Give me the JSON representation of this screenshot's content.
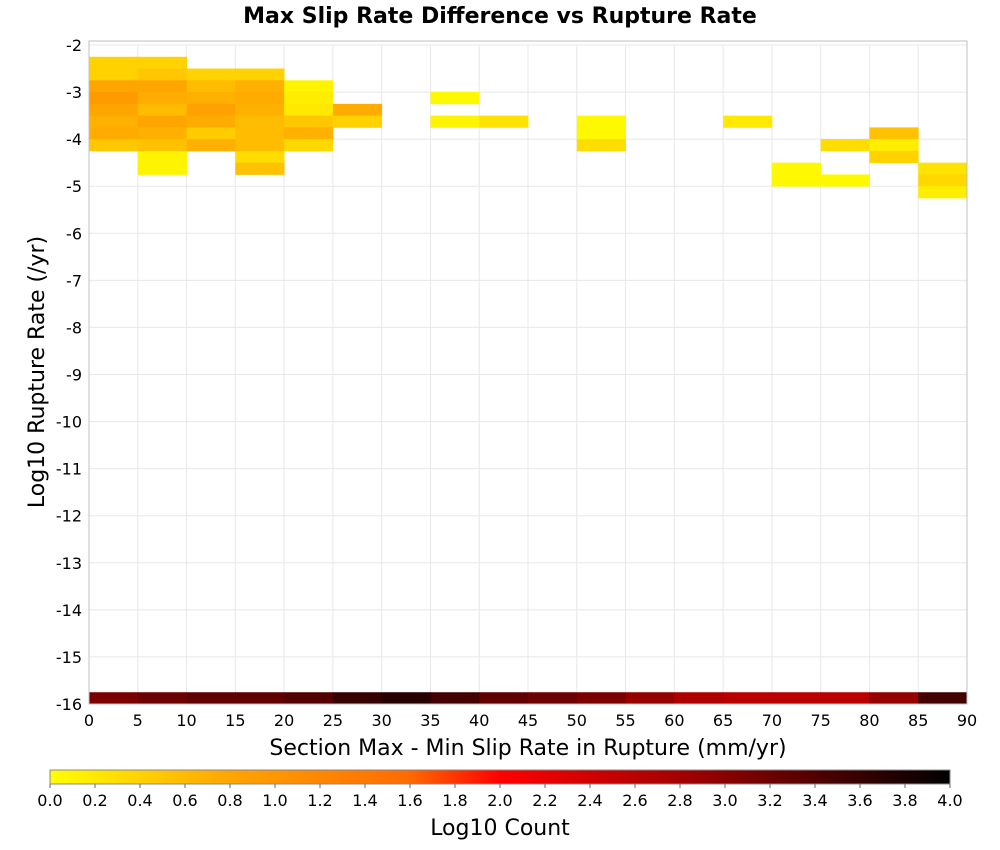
{
  "chart_data": {
    "type": "heatmap",
    "title": "Max Slip Rate Difference vs Rupture Rate",
    "xlabel": "Section Max - Min Slip Rate in Rupture (mm/yr)",
    "ylabel": "Log10 Rupture Rate (/yr)",
    "xlim": [
      0,
      90
    ],
    "ylim": [
      -16,
      -2
    ],
    "x_ticks": [
      "0",
      "5",
      "10",
      "15",
      "20",
      "25",
      "30",
      "35",
      "40",
      "45",
      "50",
      "55",
      "60",
      "65",
      "70",
      "75",
      "80",
      "85",
      "90"
    ],
    "y_ticks": [
      "-2",
      "-3",
      "-4",
      "-5",
      "-6",
      "-7",
      "-8",
      "-9",
      "-10",
      "-11",
      "-12",
      "-13",
      "-14",
      "-15",
      "-16"
    ],
    "x_bin_width": 5,
    "y_bin_height": 0.25,
    "grid": true,
    "colorbar": {
      "label": "Log10 Count",
      "range": [
        0,
        4
      ],
      "ticks": [
        "0.0",
        "0.2",
        "0.4",
        "0.6",
        "0.8",
        "1.0",
        "1.2",
        "1.4",
        "1.6",
        "1.8",
        "2.0",
        "2.2",
        "2.4",
        "2.6",
        "2.8",
        "3.0",
        "3.2",
        "3.4",
        "3.6",
        "3.8",
        "4.0"
      ],
      "colors": [
        "#ffff00",
        "#ffa500",
        "#ff6a00",
        "#ff0000",
        "#990000",
        "#000000"
      ]
    },
    "cells": [
      {
        "x": 0,
        "y": -2.25,
        "v": 0.4
      },
      {
        "x": 5,
        "y": -2.25,
        "v": 0.4
      },
      {
        "x": 0,
        "y": -2.5,
        "v": 0.4
      },
      {
        "x": 5,
        "y": -2.5,
        "v": 0.5
      },
      {
        "x": 10,
        "y": -2.5,
        "v": 0.4
      },
      {
        "x": 15,
        "y": -2.5,
        "v": 0.4
      },
      {
        "x": 0,
        "y": -2.75,
        "v": 0.8
      },
      {
        "x": 5,
        "y": -2.75,
        "v": 0.8
      },
      {
        "x": 10,
        "y": -2.75,
        "v": 0.6
      },
      {
        "x": 15,
        "y": -2.75,
        "v": 0.7
      },
      {
        "x": 20,
        "y": -2.75,
        "v": 0.1
      },
      {
        "x": 0,
        "y": -3.0,
        "v": 0.95
      },
      {
        "x": 5,
        "y": -3.0,
        "v": 0.75
      },
      {
        "x": 10,
        "y": -3.0,
        "v": 0.7
      },
      {
        "x": 15,
        "y": -3.0,
        "v": 0.75
      },
      {
        "x": 20,
        "y": -3.0,
        "v": 0.15
      },
      {
        "x": 35,
        "y": -3.0,
        "v": 0.05
      },
      {
        "x": 0,
        "y": -3.25,
        "v": 0.8
      },
      {
        "x": 5,
        "y": -3.25,
        "v": 0.6
      },
      {
        "x": 10,
        "y": -3.25,
        "v": 0.85
      },
      {
        "x": 15,
        "y": -3.25,
        "v": 0.7
      },
      {
        "x": 20,
        "y": -3.25,
        "v": 0.2
      },
      {
        "x": 25,
        "y": -3.25,
        "v": 0.75
      },
      {
        "x": 0,
        "y": -3.5,
        "v": 0.7
      },
      {
        "x": 5,
        "y": -3.5,
        "v": 0.8
      },
      {
        "x": 10,
        "y": -3.5,
        "v": 0.75
      },
      {
        "x": 15,
        "y": -3.5,
        "v": 0.6
      },
      {
        "x": 20,
        "y": -3.5,
        "v": 0.5
      },
      {
        "x": 25,
        "y": -3.5,
        "v": 0.4
      },
      {
        "x": 35,
        "y": -3.5,
        "v": 0.1
      },
      {
        "x": 40,
        "y": -3.5,
        "v": 0.25
      },
      {
        "x": 50,
        "y": -3.5,
        "v": 0.05
      },
      {
        "x": 65,
        "y": -3.5,
        "v": 0.2
      },
      {
        "x": 0,
        "y": -3.75,
        "v": 0.75
      },
      {
        "x": 5,
        "y": -3.75,
        "v": 0.7
      },
      {
        "x": 10,
        "y": -3.75,
        "v": 0.45
      },
      {
        "x": 15,
        "y": -3.75,
        "v": 0.6
      },
      {
        "x": 20,
        "y": -3.75,
        "v": 0.7
      },
      {
        "x": 50,
        "y": -3.75,
        "v": 0.05
      },
      {
        "x": 80,
        "y": -3.75,
        "v": 0.55
      },
      {
        "x": 0,
        "y": -4.0,
        "v": 0.5
      },
      {
        "x": 5,
        "y": -4.0,
        "v": 0.55
      },
      {
        "x": 10,
        "y": -4.0,
        "v": 0.7
      },
      {
        "x": 15,
        "y": -4.0,
        "v": 0.6
      },
      {
        "x": 20,
        "y": -4.0,
        "v": 0.35
      },
      {
        "x": 50,
        "y": -4.0,
        "v": 0.3
      },
      {
        "x": 75,
        "y": -4.0,
        "v": 0.3
      },
      {
        "x": 80,
        "y": -4.0,
        "v": 0.15
      },
      {
        "x": 5,
        "y": -4.25,
        "v": 0.1
      },
      {
        "x": 15,
        "y": -4.25,
        "v": 0.3
      },
      {
        "x": 80,
        "y": -4.25,
        "v": 0.4
      },
      {
        "x": 5,
        "y": -4.5,
        "v": 0.1
      },
      {
        "x": 15,
        "y": -4.5,
        "v": 0.55
      },
      {
        "x": 70,
        "y": -4.5,
        "v": 0.05
      },
      {
        "x": 85,
        "y": -4.5,
        "v": 0.25
      },
      {
        "x": 70,
        "y": -4.75,
        "v": 0.05
      },
      {
        "x": 75,
        "y": -4.75,
        "v": 0.05
      },
      {
        "x": 85,
        "y": -4.75,
        "v": 0.35
      },
      {
        "x": 85,
        "y": -5.0,
        "v": 0.15
      },
      {
        "x": 0,
        "y": -15.75,
        "v": 3.1
      },
      {
        "x": 5,
        "y": -15.75,
        "v": 3.2
      },
      {
        "x": 10,
        "y": -15.75,
        "v": 3.3
      },
      {
        "x": 15,
        "y": -15.75,
        "v": 3.3
      },
      {
        "x": 20,
        "y": -15.75,
        "v": 3.4
      },
      {
        "x": 25,
        "y": -15.75,
        "v": 3.6
      },
      {
        "x": 30,
        "y": -15.75,
        "v": 3.7
      },
      {
        "x": 35,
        "y": -15.75,
        "v": 3.5
      },
      {
        "x": 40,
        "y": -15.75,
        "v": 3.3
      },
      {
        "x": 45,
        "y": -15.75,
        "v": 3.2
      },
      {
        "x": 50,
        "y": -15.75,
        "v": 3.1
      },
      {
        "x": 55,
        "y": -15.75,
        "v": 2.9
      },
      {
        "x": 60,
        "y": -15.75,
        "v": 2.7
      },
      {
        "x": 65,
        "y": -15.75,
        "v": 2.6
      },
      {
        "x": 70,
        "y": -15.75,
        "v": 2.6
      },
      {
        "x": 75,
        "y": -15.75,
        "v": 2.6
      },
      {
        "x": 80,
        "y": -15.75,
        "v": 2.9
      },
      {
        "x": 85,
        "y": -15.75,
        "v": 3.5
      }
    ]
  }
}
